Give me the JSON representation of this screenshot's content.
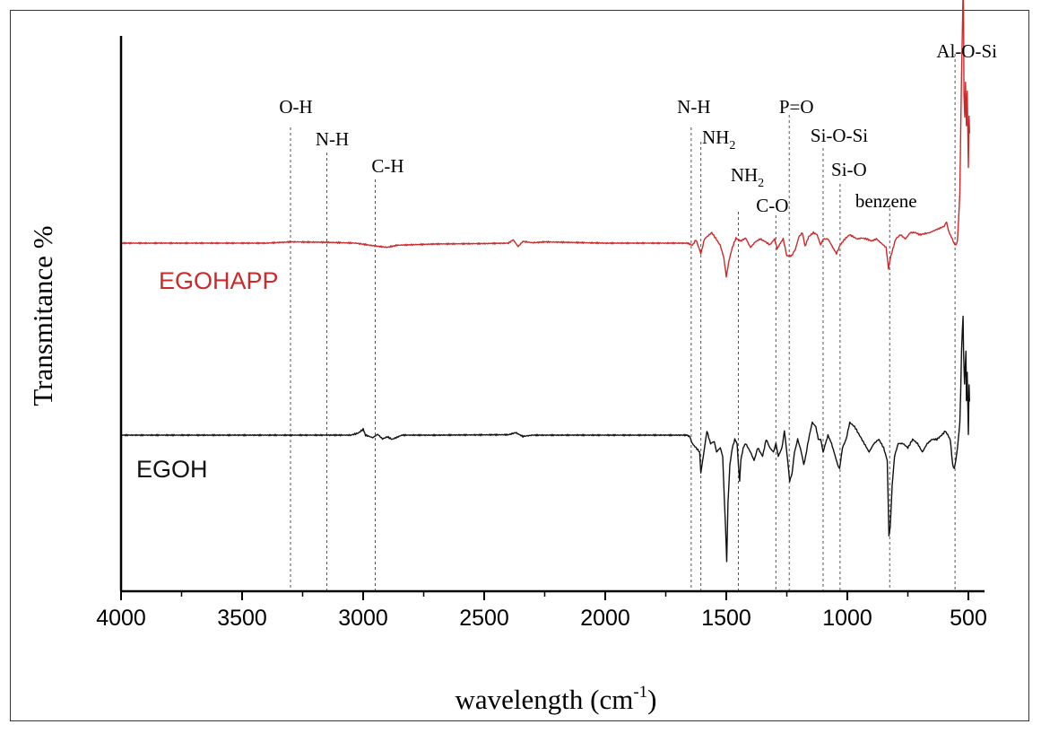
{
  "chart_data": {
    "type": "line",
    "xlabel": "wavelength (cm",
    "xlabel_sup": "-1",
    "xlabel_close": ")",
    "ylabel": "Transmitance %",
    "xlim": [
      4000,
      460
    ],
    "x_reversed": true,
    "xticks": [
      "4000",
      "3500",
      "3000",
      "2500",
      "2000",
      "1500",
      "1000",
      "500"
    ],
    "grid": false,
    "annotations": [
      {
        "x": 3300,
        "text": "O-H"
      },
      {
        "x": 3150,
        "text": "N-H"
      },
      {
        "x": 2950,
        "text": "C-H"
      },
      {
        "x": 1645,
        "text": "N-H"
      },
      {
        "x": 1605,
        "text": "NH",
        "sub": "2"
      },
      {
        "x": 1450,
        "text": "NH",
        "sub": "2"
      },
      {
        "x": 1295,
        "text": "C-O"
      },
      {
        "x": 1240,
        "text": "P=O"
      },
      {
        "x": 1100,
        "text": "Si-O-Si"
      },
      {
        "x": 1030,
        "text": "Si-O"
      },
      {
        "x": 825,
        "text": "benzene"
      },
      {
        "x": 555,
        "text": "Al-O-Si"
      }
    ],
    "series": [
      {
        "name": "EGOHAPP",
        "color": "#cc2a2a",
        "points": [
          [
            4000,
            0
          ],
          [
            3400,
            0
          ],
          [
            3300,
            0.3
          ],
          [
            3150,
            0.2
          ],
          [
            3030,
            0
          ],
          [
            2960,
            -0.6
          ],
          [
            2900,
            -1
          ],
          [
            2860,
            -0.5
          ],
          [
            2700,
            -0.2
          ],
          [
            2500,
            -0.1
          ],
          [
            2400,
            0
          ],
          [
            2380,
            0.8
          ],
          [
            2360,
            -0.8
          ],
          [
            2340,
            0.4
          ],
          [
            2300,
            0.1
          ],
          [
            2250,
            0.3
          ],
          [
            2000,
            0
          ],
          [
            1800,
            0
          ],
          [
            1660,
            0
          ],
          [
            1640,
            -0.5
          ],
          [
            1625,
            0.8
          ],
          [
            1605,
            -2.5
          ],
          [
            1590,
            1
          ],
          [
            1560,
            2.5
          ],
          [
            1540,
            0.8
          ],
          [
            1525,
            -0.5
          ],
          [
            1510,
            -3.5
          ],
          [
            1500,
            -8
          ],
          [
            1490,
            -4.5
          ],
          [
            1475,
            -1
          ],
          [
            1460,
            1.2
          ],
          [
            1440,
            0.5
          ],
          [
            1420,
            1.2
          ],
          [
            1400,
            -1
          ],
          [
            1380,
            0.3
          ],
          [
            1360,
            1
          ],
          [
            1340,
            0.4
          ],
          [
            1320,
            -0.4
          ],
          [
            1300,
            1
          ],
          [
            1290,
            -1.4
          ],
          [
            1280,
            -0.3
          ],
          [
            1265,
            1
          ],
          [
            1250,
            -3
          ],
          [
            1230,
            -3
          ],
          [
            1215,
            -1.5
          ],
          [
            1200,
            1.5
          ],
          [
            1185,
            2.5
          ],
          [
            1175,
            -0.8
          ],
          [
            1160,
            1.5
          ],
          [
            1140,
            2.5
          ],
          [
            1125,
            2
          ],
          [
            1110,
            -0.5
          ],
          [
            1100,
            1
          ],
          [
            1080,
            1
          ],
          [
            1060,
            -1
          ],
          [
            1045,
            -2.5
          ],
          [
            1030,
            -0.5
          ],
          [
            1010,
            1
          ],
          [
            990,
            2
          ],
          [
            960,
            1
          ],
          [
            940,
            1.2
          ],
          [
            920,
            1
          ],
          [
            900,
            0.5
          ],
          [
            880,
            1
          ],
          [
            860,
            0
          ],
          [
            840,
            -1
          ],
          [
            830,
            -6
          ],
          [
            820,
            -3
          ],
          [
            800,
            1
          ],
          [
            780,
            2
          ],
          [
            760,
            1
          ],
          [
            740,
            2.5
          ],
          [
            720,
            2.5
          ],
          [
            700,
            2
          ],
          [
            660,
            2.5
          ],
          [
            640,
            3
          ],
          [
            620,
            3.5
          ],
          [
            600,
            4
          ],
          [
            590,
            5
          ],
          [
            580,
            2.5
          ],
          [
            570,
            1.5
          ],
          [
            560,
            0
          ],
          [
            552,
            -0.5
          ],
          [
            545,
            0.5
          ],
          [
            535,
            12
          ],
          [
            532,
            26
          ],
          [
            528,
            40
          ],
          [
            525,
            50
          ],
          [
            522,
            60
          ],
          [
            520,
            55
          ],
          [
            518,
            35
          ],
          [
            515,
            30
          ],
          [
            512,
            38
          ],
          [
            508,
            28
          ],
          [
            505,
            36
          ],
          [
            500,
            18
          ],
          [
            497,
            30
          ],
          [
            495,
            26
          ]
        ]
      },
      {
        "name": "EGOH",
        "color": "#111111",
        "points": [
          [
            4000,
            0
          ],
          [
            3800,
            0
          ],
          [
            3600,
            0
          ],
          [
            3400,
            0
          ],
          [
            3200,
            0
          ],
          [
            3050,
            0
          ],
          [
            3020,
            0.5
          ],
          [
            3000,
            1.4
          ],
          [
            2990,
            0
          ],
          [
            2960,
            -0.6
          ],
          [
            2940,
            0.2
          ],
          [
            2920,
            -0.9
          ],
          [
            2900,
            -0.4
          ],
          [
            2880,
            -1
          ],
          [
            2860,
            -0.5
          ],
          [
            2840,
            0
          ],
          [
            2700,
            0
          ],
          [
            2400,
            0.1
          ],
          [
            2370,
            0.6
          ],
          [
            2340,
            -0.3
          ],
          [
            2300,
            0
          ],
          [
            2000,
            0
          ],
          [
            1700,
            0
          ],
          [
            1660,
            0
          ],
          [
            1650,
            -0.5
          ],
          [
            1640,
            -2
          ],
          [
            1625,
            -3
          ],
          [
            1610,
            -4
          ],
          [
            1605,
            -9
          ],
          [
            1595,
            -5
          ],
          [
            1580,
            1
          ],
          [
            1565,
            -2
          ],
          [
            1550,
            -1.5
          ],
          [
            1540,
            -4
          ],
          [
            1525,
            -3
          ],
          [
            1515,
            -5
          ],
          [
            1508,
            -15
          ],
          [
            1503,
            -22
          ],
          [
            1498,
            -30
          ],
          [
            1493,
            -16
          ],
          [
            1485,
            -7
          ],
          [
            1475,
            -3
          ],
          [
            1465,
            -1
          ],
          [
            1455,
            -2
          ],
          [
            1450,
            -7
          ],
          [
            1445,
            -11
          ],
          [
            1440,
            -6
          ],
          [
            1430,
            -3
          ],
          [
            1420,
            -2
          ],
          [
            1400,
            -4
          ],
          [
            1385,
            -6
          ],
          [
            1370,
            -3
          ],
          [
            1350,
            -5
          ],
          [
            1335,
            -1
          ],
          [
            1320,
            -3
          ],
          [
            1305,
            -4
          ],
          [
            1295,
            -2
          ],
          [
            1285,
            -5
          ],
          [
            1270,
            -3
          ],
          [
            1260,
            1
          ],
          [
            1250,
            -4
          ],
          [
            1238,
            -11
          ],
          [
            1228,
            -9
          ],
          [
            1218,
            -4
          ],
          [
            1205,
            -1
          ],
          [
            1190,
            -4
          ],
          [
            1180,
            -7
          ],
          [
            1172,
            -5
          ],
          [
            1160,
            -1
          ],
          [
            1145,
            3
          ],
          [
            1130,
            2
          ],
          [
            1120,
            -1
          ],
          [
            1110,
            -1
          ],
          [
            1100,
            -4
          ],
          [
            1090,
            -2
          ],
          [
            1080,
            0
          ],
          [
            1065,
            -2
          ],
          [
            1055,
            -4
          ],
          [
            1040,
            -7
          ],
          [
            1032,
            -8
          ],
          [
            1020,
            -3
          ],
          [
            1005,
            -1
          ],
          [
            990,
            3
          ],
          [
            970,
            2
          ],
          [
            950,
            0
          ],
          [
            930,
            -2
          ],
          [
            910,
            -4
          ],
          [
            890,
            -2
          ],
          [
            870,
            -1
          ],
          [
            850,
            -3
          ],
          [
            835,
            -6
          ],
          [
            828,
            -24
          ],
          [
            823,
            -22
          ],
          [
            815,
            -12
          ],
          [
            805,
            -5
          ],
          [
            790,
            -2
          ],
          [
            770,
            -2
          ],
          [
            750,
            -3
          ],
          [
            730,
            -1
          ],
          [
            710,
            -2
          ],
          [
            690,
            -4
          ],
          [
            670,
            -2
          ],
          [
            650,
            -1
          ],
          [
            630,
            -1
          ],
          [
            610,
            0
          ],
          [
            595,
            1
          ],
          [
            585,
            0
          ],
          [
            575,
            -1
          ],
          [
            565,
            -7
          ],
          [
            558,
            -8
          ],
          [
            552,
            -6
          ],
          [
            545,
            -3
          ],
          [
            535,
            3
          ],
          [
            532,
            10
          ],
          [
            528,
            20
          ],
          [
            525,
            25
          ],
          [
            522,
            28
          ],
          [
            520,
            20
          ],
          [
            516,
            12
          ],
          [
            513,
            16
          ],
          [
            510,
            20
          ],
          [
            508,
            8
          ],
          [
            505,
            15
          ],
          [
            500,
            0
          ],
          [
            497,
            12
          ],
          [
            495,
            8
          ]
        ]
      }
    ]
  }
}
